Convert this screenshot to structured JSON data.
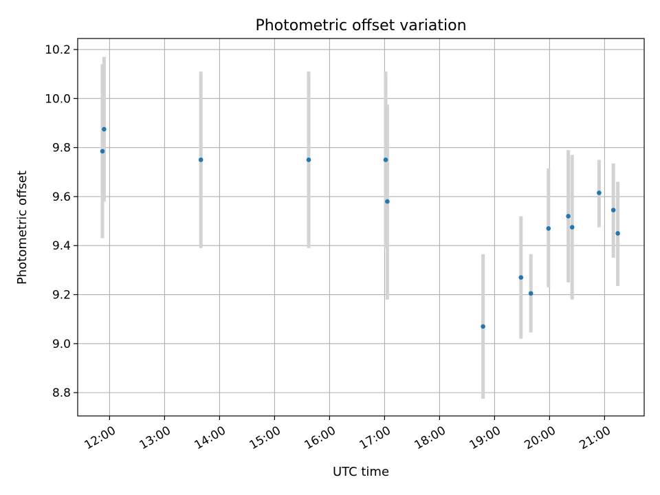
{
  "chart_data": {
    "type": "scatter",
    "title": "Photometric offset variation",
    "xlabel": "UTC time",
    "ylabel": "Photometric offset",
    "grid": true,
    "x_unit": "hours",
    "xlim": [
      11.42,
      21.72
    ],
    "ylim": [
      8.705,
      10.245
    ],
    "x_ticks": [
      {
        "value": 12,
        "label": "12:00"
      },
      {
        "value": 13,
        "label": "13:00"
      },
      {
        "value": 14,
        "label": "14:00"
      },
      {
        "value": 15,
        "label": "15:00"
      },
      {
        "value": 16,
        "label": "16:00"
      },
      {
        "value": 17,
        "label": "17:00"
      },
      {
        "value": 18,
        "label": "18:00"
      },
      {
        "value": 19,
        "label": "19:00"
      },
      {
        "value": 20,
        "label": "20:00"
      },
      {
        "value": 21,
        "label": "21:00"
      }
    ],
    "y_ticks": [
      {
        "value": 8.8,
        "label": "8.8"
      },
      {
        "value": 9.0,
        "label": "9.0"
      },
      {
        "value": 9.2,
        "label": "9.2"
      },
      {
        "value": 9.4,
        "label": "9.4"
      },
      {
        "value": 9.6,
        "label": "9.6"
      },
      {
        "value": 9.8,
        "label": "9.8"
      },
      {
        "value": 10.0,
        "label": "10.0"
      },
      {
        "value": 10.2,
        "label": "10.2"
      }
    ],
    "points": [
      {
        "x": 11.87,
        "y": 9.785,
        "ylow": 9.43,
        "yhigh": 10.14
      },
      {
        "x": 11.9,
        "y": 9.875,
        "ylow": 9.58,
        "yhigh": 10.17
      },
      {
        "x": 13.66,
        "y": 9.75,
        "ylow": 9.39,
        "yhigh": 10.11
      },
      {
        "x": 15.62,
        "y": 9.75,
        "ylow": 9.39,
        "yhigh": 10.11
      },
      {
        "x": 17.02,
        "y": 9.75,
        "ylow": 9.39,
        "yhigh": 10.11
      },
      {
        "x": 17.05,
        "y": 9.58,
        "ylow": 9.18,
        "yhigh": 9.975
      },
      {
        "x": 18.79,
        "y": 9.07,
        "ylow": 8.775,
        "yhigh": 9.365
      },
      {
        "x": 19.48,
        "y": 9.27,
        "ylow": 9.02,
        "yhigh": 9.52
      },
      {
        "x": 19.66,
        "y": 9.205,
        "ylow": 9.045,
        "yhigh": 9.365
      },
      {
        "x": 19.98,
        "y": 9.47,
        "ylow": 9.23,
        "yhigh": 9.715
      },
      {
        "x": 20.34,
        "y": 9.52,
        "ylow": 9.25,
        "yhigh": 9.79
      },
      {
        "x": 20.41,
        "y": 9.475,
        "ylow": 9.18,
        "yhigh": 9.77
      },
      {
        "x": 20.9,
        "y": 9.615,
        "ylow": 9.475,
        "yhigh": 9.75
      },
      {
        "x": 21.16,
        "y": 9.545,
        "ylow": 9.35,
        "yhigh": 9.735
      },
      {
        "x": 21.24,
        "y": 9.45,
        "ylow": 9.235,
        "yhigh": 9.66
      }
    ],
    "colors": {
      "marker": "#1f77b4",
      "errorbar": "#d3d3d3",
      "grid": "#b0b0b0",
      "axes": "#000000"
    }
  }
}
